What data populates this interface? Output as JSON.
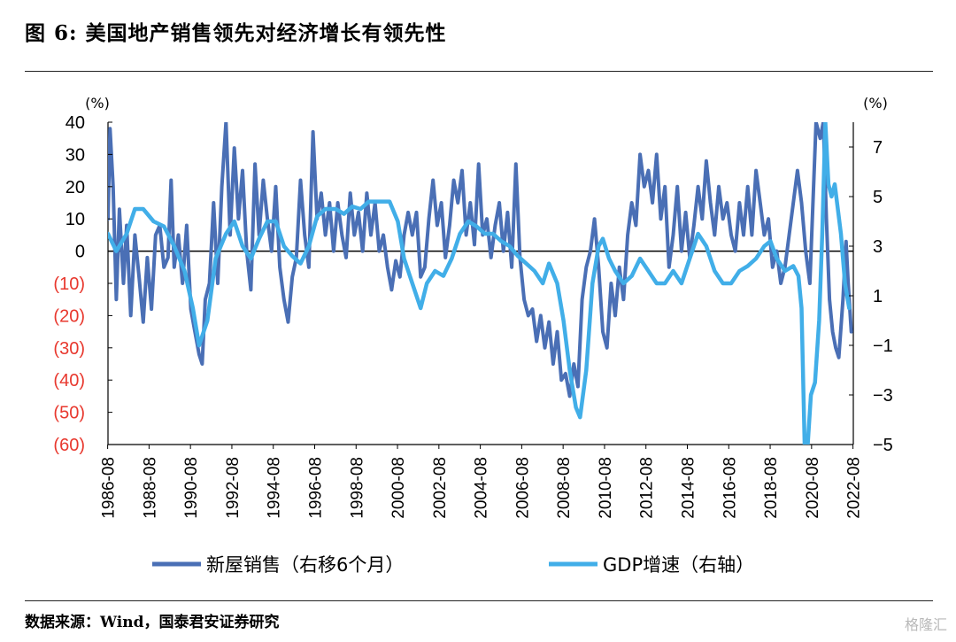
{
  "title": "图 6: 美国地产销售领先对经济增长有领先性",
  "source": "数据来源：Wind，国泰君安证券研究",
  "watermark": "格隆汇",
  "colors": {
    "sales": "#4a6fb5",
    "gdp": "#41aee8",
    "negative_tick": "#e8382e"
  },
  "chart_data": {
    "type": "line",
    "x_tick_labels": [
      "1986-08",
      "1988-08",
      "1990-08",
      "1992-08",
      "1994-08",
      "1996-08",
      "1998-08",
      "2000-08",
      "2002-08",
      "2004-08",
      "2006-08",
      "2008-08",
      "2010-08",
      "2012-08",
      "2014-08",
      "2016-08",
      "2018-08",
      "2020-08",
      "2022-08"
    ],
    "xlim": [
      1986.6,
      2022.6
    ],
    "left_axis": {
      "label": "(%)",
      "ylim": [
        -60,
        40
      ],
      "ticks": [
        40,
        30,
        20,
        10,
        0,
        -10,
        -20,
        -30,
        -40,
        -50,
        -60
      ],
      "tick_labels": [
        "40",
        "30",
        "20",
        "10",
        "0",
        "(10)",
        "(20)",
        "(30)",
        "(40)",
        "(50)",
        "(60)"
      ]
    },
    "right_axis": {
      "label": "(%)",
      "ylim": [
        -5,
        8
      ],
      "ticks": [
        7,
        5,
        3,
        1,
        -1,
        -3,
        -5
      ],
      "tick_labels": [
        "7",
        "5",
        "3",
        "1",
        "−1",
        "−3",
        "−5"
      ]
    },
    "series": [
      {
        "name": "新屋销售（右移6个月）",
        "axis": "left",
        "color": "#4a6fb5",
        "points": [
          [
            1986.6,
            10
          ],
          [
            1986.7,
            38
          ],
          [
            1986.85,
            20
          ],
          [
            1987.0,
            -15
          ],
          [
            1987.15,
            13
          ],
          [
            1987.35,
            -10
          ],
          [
            1987.5,
            8
          ],
          [
            1987.7,
            -20
          ],
          [
            1987.9,
            5
          ],
          [
            1988.1,
            -8
          ],
          [
            1988.3,
            -22
          ],
          [
            1988.5,
            -2
          ],
          [
            1988.7,
            -18
          ],
          [
            1988.9,
            5
          ],
          [
            1989.1,
            8
          ],
          [
            1989.3,
            -5
          ],
          [
            1989.5,
            -2
          ],
          [
            1989.65,
            22
          ],
          [
            1989.8,
            -5
          ],
          [
            1990.0,
            5
          ],
          [
            1990.2,
            -10
          ],
          [
            1990.4,
            8
          ],
          [
            1990.6,
            -18
          ],
          [
            1990.8,
            -25
          ],
          [
            1991.0,
            -32
          ],
          [
            1991.15,
            -35
          ],
          [
            1991.3,
            -15
          ],
          [
            1991.5,
            -10
          ],
          [
            1991.7,
            15
          ],
          [
            1991.9,
            -10
          ],
          [
            1992.1,
            20
          ],
          [
            1992.3,
            40
          ],
          [
            1992.5,
            5
          ],
          [
            1992.7,
            32
          ],
          [
            1992.9,
            10
          ],
          [
            1993.1,
            25
          ],
          [
            1993.3,
            0
          ],
          [
            1993.5,
            -12
          ],
          [
            1993.7,
            27
          ],
          [
            1993.9,
            5
          ],
          [
            1994.1,
            22
          ],
          [
            1994.3,
            10
          ],
          [
            1994.5,
            0
          ],
          [
            1994.7,
            20
          ],
          [
            1994.9,
            -5
          ],
          [
            1995.1,
            -15
          ],
          [
            1995.3,
            -22
          ],
          [
            1995.5,
            -8
          ],
          [
            1995.7,
            -2
          ],
          [
            1995.9,
            22
          ],
          [
            1996.1,
            5
          ],
          [
            1996.3,
            -5
          ],
          [
            1996.5,
            37
          ],
          [
            1996.7,
            10
          ],
          [
            1996.9,
            18
          ],
          [
            1997.1,
            5
          ],
          [
            1997.3,
            15
          ],
          [
            1997.5,
            0
          ],
          [
            1997.7,
            15
          ],
          [
            1997.9,
            5
          ],
          [
            1998.1,
            -2
          ],
          [
            1998.3,
            18
          ],
          [
            1998.5,
            5
          ],
          [
            1998.7,
            12
          ],
          [
            1998.9,
            0
          ],
          [
            1999.1,
            18
          ],
          [
            1999.3,
            5
          ],
          [
            1999.5,
            15
          ],
          [
            1999.7,
            0
          ],
          [
            1999.9,
            5
          ],
          [
            2000.1,
            -5
          ],
          [
            2000.3,
            -12
          ],
          [
            2000.5,
            -3
          ],
          [
            2000.7,
            -8
          ],
          [
            2000.9,
            5
          ],
          [
            2001.1,
            12
          ],
          [
            2001.3,
            5
          ],
          [
            2001.5,
            12
          ],
          [
            2001.7,
            -8
          ],
          [
            2001.9,
            -5
          ],
          [
            2002.1,
            10
          ],
          [
            2002.3,
            22
          ],
          [
            2002.5,
            8
          ],
          [
            2002.7,
            15
          ],
          [
            2002.9,
            -2
          ],
          [
            2003.1,
            8
          ],
          [
            2003.3,
            22
          ],
          [
            2003.5,
            15
          ],
          [
            2003.7,
            25
          ],
          [
            2003.9,
            5
          ],
          [
            2004.1,
            15
          ],
          [
            2004.3,
            2
          ],
          [
            2004.5,
            27
          ],
          [
            2004.7,
            5
          ],
          [
            2004.9,
            10
          ],
          [
            2005.1,
            -2
          ],
          [
            2005.3,
            8
          ],
          [
            2005.5,
            15
          ],
          [
            2005.7,
            0
          ],
          [
            2005.9,
            12
          ],
          [
            2006.1,
            -5
          ],
          [
            2006.3,
            27
          ],
          [
            2006.5,
            -2
          ],
          [
            2006.7,
            -15
          ],
          [
            2006.9,
            -20
          ],
          [
            2007.1,
            -18
          ],
          [
            2007.3,
            -28
          ],
          [
            2007.5,
            -20
          ],
          [
            2007.7,
            -30
          ],
          [
            2007.9,
            -22
          ],
          [
            2008.1,
            -35
          ],
          [
            2008.3,
            -25
          ],
          [
            2008.5,
            -40
          ],
          [
            2008.7,
            -38
          ],
          [
            2008.9,
            -45
          ],
          [
            2009.1,
            -35
          ],
          [
            2009.3,
            -42
          ],
          [
            2009.5,
            -15
          ],
          [
            2009.7,
            -5
          ],
          [
            2009.9,
            0
          ],
          [
            2010.1,
            10
          ],
          [
            2010.3,
            -5
          ],
          [
            2010.5,
            -25
          ],
          [
            2010.7,
            -30
          ],
          [
            2010.9,
            -10
          ],
          [
            2011.1,
            -20
          ],
          [
            2011.3,
            -5
          ],
          [
            2011.5,
            -15
          ],
          [
            2011.7,
            5
          ],
          [
            2011.9,
            15
          ],
          [
            2012.1,
            8
          ],
          [
            2012.3,
            30
          ],
          [
            2012.5,
            20
          ],
          [
            2012.7,
            25
          ],
          [
            2012.9,
            15
          ],
          [
            2013.1,
            30
          ],
          [
            2013.3,
            10
          ],
          [
            2013.5,
            20
          ],
          [
            2013.7,
            -5
          ],
          [
            2013.9,
            5
          ],
          [
            2014.1,
            20
          ],
          [
            2014.3,
            0
          ],
          [
            2014.5,
            12
          ],
          [
            2014.7,
            -2
          ],
          [
            2014.9,
            8
          ],
          [
            2015.1,
            20
          ],
          [
            2015.3,
            10
          ],
          [
            2015.5,
            28
          ],
          [
            2015.7,
            15
          ],
          [
            2015.9,
            5
          ],
          [
            2016.1,
            20
          ],
          [
            2016.3,
            10
          ],
          [
            2016.5,
            15
          ],
          [
            2016.7,
            5
          ],
          [
            2016.9,
            0
          ],
          [
            2017.1,
            15
          ],
          [
            2017.3,
            5
          ],
          [
            2017.5,
            20
          ],
          [
            2017.7,
            5
          ],
          [
            2017.9,
            25
          ],
          [
            2018.1,
            15
          ],
          [
            2018.3,
            5
          ],
          [
            2018.5,
            10
          ],
          [
            2018.7,
            -5
          ],
          [
            2018.9,
            0
          ],
          [
            2019.1,
            -10
          ],
          [
            2019.3,
            -5
          ],
          [
            2019.5,
            5
          ],
          [
            2019.7,
            15
          ],
          [
            2019.9,
            25
          ],
          [
            2020.1,
            15
          ],
          [
            2020.3,
            0
          ],
          [
            2020.5,
            -10
          ],
          [
            2020.65,
            15
          ],
          [
            2020.8,
            40
          ],
          [
            2021.0,
            35
          ],
          [
            2021.15,
            40
          ],
          [
            2021.3,
            10
          ],
          [
            2021.45,
            -15
          ],
          [
            2021.6,
            -25
          ],
          [
            2021.75,
            -30
          ],
          [
            2021.9,
            -33
          ],
          [
            2022.1,
            -15
          ],
          [
            2022.25,
            3
          ],
          [
            2022.35,
            -10
          ],
          [
            2022.5,
            -25
          ]
        ]
      },
      {
        "name": "GDP增速（右轴）",
        "axis": "right",
        "color": "#41aee8",
        "points": [
          [
            1986.6,
            3.5
          ],
          [
            1987.0,
            2.8
          ],
          [
            1987.5,
            3.5
          ],
          [
            1987.9,
            4.5
          ],
          [
            1988.3,
            4.5
          ],
          [
            1988.8,
            4.0
          ],
          [
            1989.3,
            3.8
          ],
          [
            1989.8,
            3.0
          ],
          [
            1990.3,
            2.0
          ],
          [
            1990.7,
            0.5
          ],
          [
            1991.0,
            -1.0
          ],
          [
            1991.4,
            0.0
          ],
          [
            1991.8,
            2.5
          ],
          [
            1992.3,
            3.5
          ],
          [
            1992.7,
            4.0
          ],
          [
            1993.1,
            3.0
          ],
          [
            1993.5,
            2.5
          ],
          [
            1993.9,
            3.3
          ],
          [
            1994.3,
            4.0
          ],
          [
            1994.7,
            4.0
          ],
          [
            1995.1,
            3.0
          ],
          [
            1995.5,
            2.6
          ],
          [
            1995.9,
            2.3
          ],
          [
            1996.3,
            3.0
          ],
          [
            1996.7,
            4.2
          ],
          [
            1997.1,
            4.5
          ],
          [
            1997.6,
            4.5
          ],
          [
            1998.0,
            4.3
          ],
          [
            1998.4,
            4.6
          ],
          [
            1998.8,
            4.5
          ],
          [
            1999.2,
            4.8
          ],
          [
            1999.7,
            4.8
          ],
          [
            2000.2,
            4.8
          ],
          [
            2000.6,
            4.0
          ],
          [
            2000.9,
            2.5
          ],
          [
            2001.3,
            1.5
          ],
          [
            2001.7,
            0.5
          ],
          [
            2002.0,
            1.5
          ],
          [
            2002.4,
            2.0
          ],
          [
            2002.8,
            1.8
          ],
          [
            2003.2,
            2.5
          ],
          [
            2003.6,
            3.5
          ],
          [
            2004.0,
            4.0
          ],
          [
            2004.4,
            3.8
          ],
          [
            2004.8,
            3.5
          ],
          [
            2005.2,
            3.5
          ],
          [
            2005.6,
            3.2
          ],
          [
            2006.0,
            3.0
          ],
          [
            2006.4,
            2.6
          ],
          [
            2006.8,
            2.3
          ],
          [
            2007.2,
            2.0
          ],
          [
            2007.6,
            1.5
          ],
          [
            2007.9,
            2.3
          ],
          [
            2008.3,
            1.5
          ],
          [
            2008.6,
            0.0
          ],
          [
            2008.9,
            -2.0
          ],
          [
            2009.2,
            -3.5
          ],
          [
            2009.4,
            -3.9
          ],
          [
            2009.7,
            -2.0
          ],
          [
            2010.0,
            1.5
          ],
          [
            2010.3,
            3.0
          ],
          [
            2010.5,
            3.3
          ],
          [
            2010.8,
            2.5
          ],
          [
            2011.1,
            2.0
          ],
          [
            2011.5,
            1.5
          ],
          [
            2011.9,
            1.8
          ],
          [
            2012.3,
            2.5
          ],
          [
            2012.7,
            2.0
          ],
          [
            2013.1,
            1.5
          ],
          [
            2013.5,
            1.5
          ],
          [
            2013.9,
            2.0
          ],
          [
            2014.3,
            1.5
          ],
          [
            2014.7,
            2.5
          ],
          [
            2015.1,
            3.5
          ],
          [
            2015.5,
            3.0
          ],
          [
            2015.9,
            2.0
          ],
          [
            2016.3,
            1.5
          ],
          [
            2016.7,
            1.5
          ],
          [
            2017.1,
            2.0
          ],
          [
            2017.5,
            2.2
          ],
          [
            2017.9,
            2.5
          ],
          [
            2018.3,
            3.0
          ],
          [
            2018.6,
            3.2
          ],
          [
            2018.9,
            2.5
          ],
          [
            2019.3,
            2.0
          ],
          [
            2019.7,
            2.2
          ],
          [
            2019.95,
            1.8
          ],
          [
            2020.1,
            0.5
          ],
          [
            2020.25,
            -5.0
          ],
          [
            2020.4,
            -5.0
          ],
          [
            2020.55,
            -3.0
          ],
          [
            2020.75,
            -2.5
          ],
          [
            2020.95,
            0.0
          ],
          [
            2021.1,
            3.5
          ],
          [
            2021.25,
            8.0
          ],
          [
            2021.4,
            5.5
          ],
          [
            2021.55,
            5.0
          ],
          [
            2021.7,
            5.5
          ],
          [
            2021.85,
            4.5
          ],
          [
            2022.0,
            3.5
          ],
          [
            2022.2,
            1.5
          ],
          [
            2022.4,
            0.5
          ]
        ]
      }
    ],
    "legend_position": "bottom",
    "legend": [
      "新屋销售（右移6个月）",
      "GDP增速（右轴）"
    ]
  }
}
